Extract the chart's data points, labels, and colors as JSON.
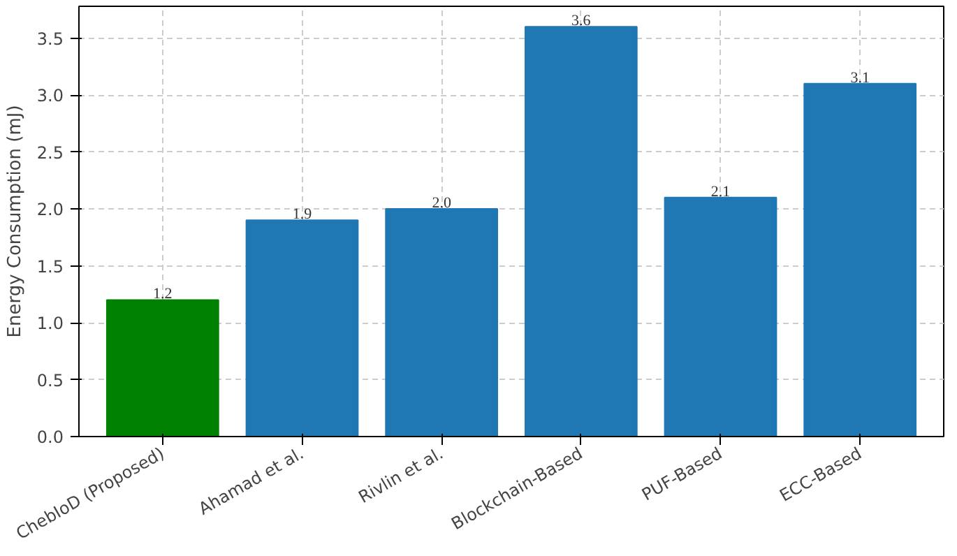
{
  "chart_data": {
    "type": "bar",
    "ylabel": "Energy Consumption (mJ)",
    "categories": [
      "ChebIoD (Proposed)",
      "Ahamad et al.",
      "Rivlin et al.",
      "Blockchain-Based",
      "PUF-Based",
      "ECC-Based"
    ],
    "values": [
      1.2,
      1.9,
      2.0,
      3.6,
      2.1,
      3.1
    ],
    "colors": [
      "#008000",
      "#1f77b4",
      "#1f77b4",
      "#1f77b4",
      "#1f77b4",
      "#1f77b4"
    ],
    "value_labels": [
      "1.2",
      "1.9",
      "2.0",
      "3.6",
      "2.1",
      "3.1"
    ],
    "ylim": [
      0,
      3.78
    ],
    "yticks": [
      {
        "value": 0,
        "label": "0.0"
      },
      {
        "value": 0.5,
        "label": "0.5"
      },
      {
        "value": 1,
        "label": "1.0"
      },
      {
        "value": 1.5,
        "label": "1.5"
      },
      {
        "value": 2,
        "label": "2.0"
      },
      {
        "value": 2.5,
        "label": "2.5"
      },
      {
        "value": 3,
        "label": "3.0"
      },
      {
        "value": 3.5,
        "label": "3.5"
      }
    ],
    "grid": true
  }
}
